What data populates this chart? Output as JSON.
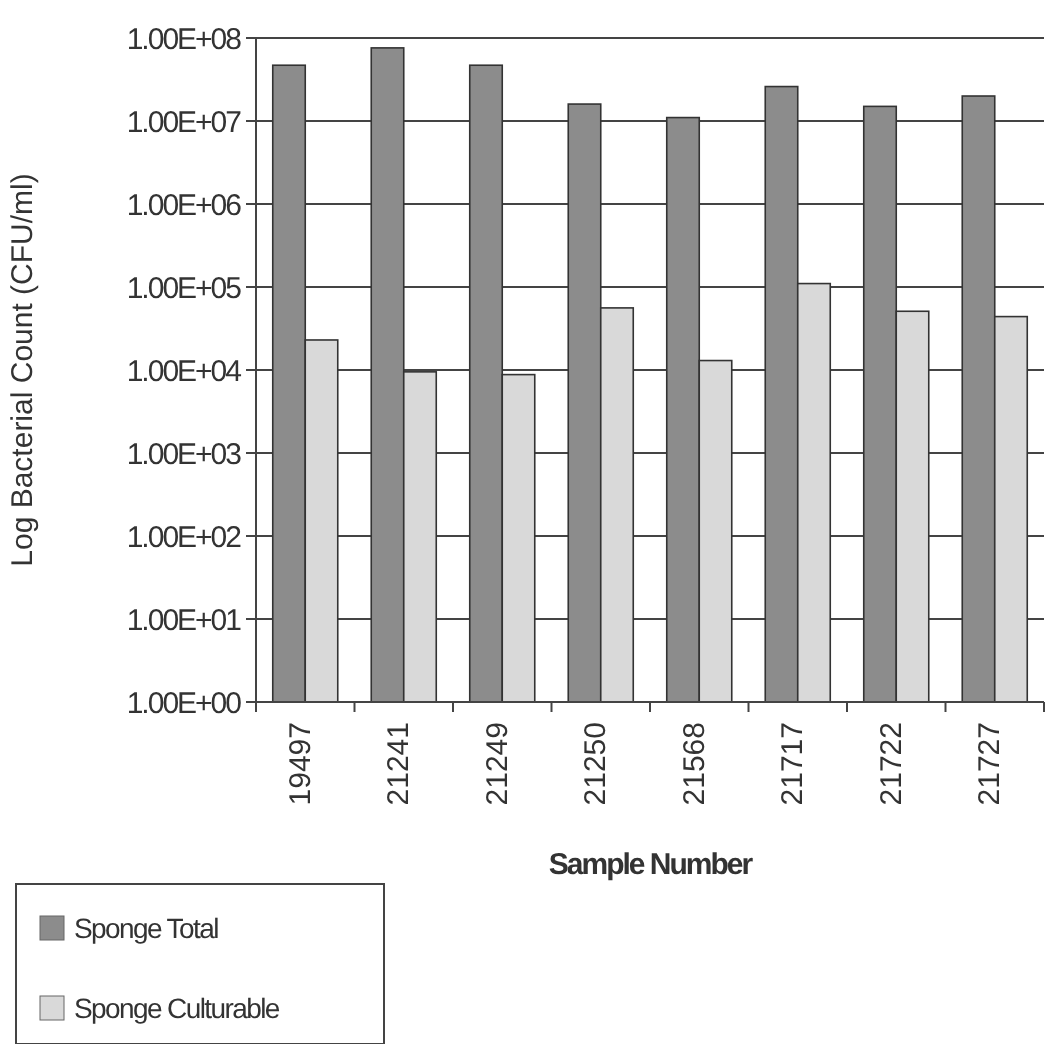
{
  "chart_data": {
    "type": "bar",
    "xlabel": "Sample Number",
    "ylabel": "Log Bacterial Count (CFU/ml)",
    "categories": [
      "19497",
      "21241",
      "21249",
      "21250",
      "21568",
      "21717",
      "21722",
      "21727"
    ],
    "series": [
      {
        "name": "Sponge Total",
        "color": "#8c8c8c",
        "values": [
          47000000,
          76000000,
          47000000,
          16000000,
          11000000,
          26000000,
          15000000,
          20000000
        ]
      },
      {
        "name": "Sponge Culturable",
        "color": "#d9d9d9",
        "values": [
          23000,
          9500,
          8800,
          56000,
          13000,
          110000,
          51000,
          44000
        ]
      }
    ],
    "log": "y",
    "ylim": [
      1,
      100000000
    ],
    "yticks": [
      {
        "value": 1,
        "label": "1.00E+00"
      },
      {
        "value": 10,
        "label": "1.00E+01"
      },
      {
        "value": 100,
        "label": "1.00E+02"
      },
      {
        "value": 1000,
        "label": "1.00E+03"
      },
      {
        "value": 10000,
        "label": "1.00E+04"
      },
      {
        "value": 100000,
        "label": "1.00E+05"
      },
      {
        "value": 1000000,
        "label": "1.00E+06"
      },
      {
        "value": 10000000,
        "label": "1.00E+07"
      },
      {
        "value": 100000000,
        "label": "1.00E+08"
      }
    ],
    "grid": "y",
    "legend": "bottom left"
  }
}
